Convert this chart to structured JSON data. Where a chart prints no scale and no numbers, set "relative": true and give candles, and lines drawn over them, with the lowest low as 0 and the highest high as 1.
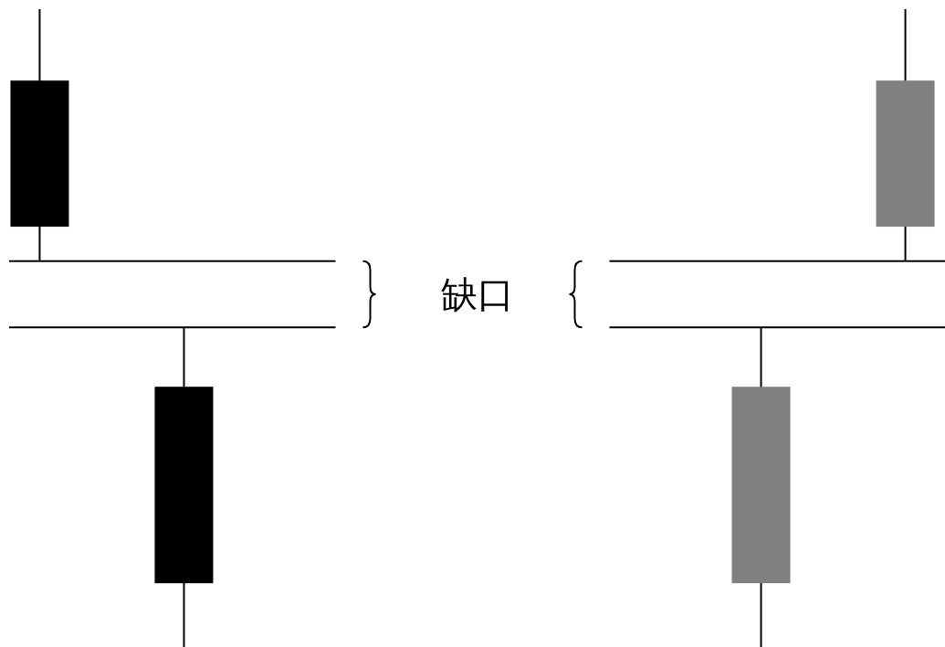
{
  "chart_data": {
    "type": "candlestick",
    "relative": true,
    "categories": [
      null,
      null,
      null,
      null,
      null,
      null,
      null
    ],
    "ohlc": [
      [
        0.888,
        1,
        0.605,
        0.659
      ],
      [
        0.408,
        0.501,
        0,
        0.1
      ],
      null,
      null,
      null,
      [
        0.1,
        0.501,
        0,
        0.408
      ],
      [
        0.659,
        1,
        0.605,
        0.888
      ]
    ],
    "colors": [
      "#000000",
      "#000000",
      null,
      null,
      null,
      "#808080",
      "#808080"
    ],
    "ref_lines": [
      {
        "axis": "y",
        "value": 0.605,
        "color": "#000000"
      },
      {
        "axis": "y",
        "value": 0.501,
        "color": "#000000"
      }
    ],
    "annotations": [
      "缺口"
    ]
  }
}
